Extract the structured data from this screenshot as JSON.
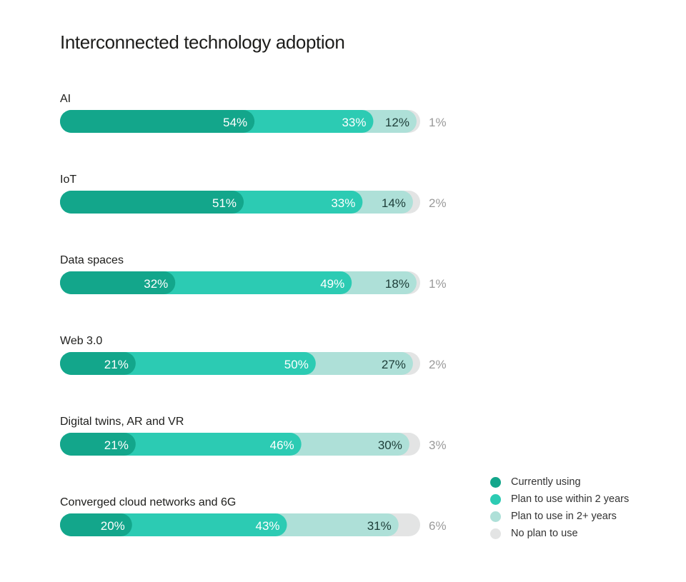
{
  "chart_data": {
    "type": "bar",
    "orientation": "horizontal",
    "stacked": true,
    "title": "Interconnected technology adoption",
    "unit": "%",
    "categories": [
      "AI",
      "IoT",
      "Data spaces",
      "Web 3.0",
      "Digital twins, AR and VR",
      "Converged cloud networks and 6G"
    ],
    "series": [
      {
        "name": "Currently using",
        "color": "#13a68b",
        "values": [
          54,
          51,
          32,
          21,
          21,
          20
        ]
      },
      {
        "name": "Plan to use within 2 years",
        "color": "#2ccbb3",
        "values": [
          33,
          33,
          49,
          50,
          46,
          43
        ]
      },
      {
        "name": "Plan to use in 2+ years",
        "color": "#aee0d8",
        "values": [
          12,
          14,
          18,
          27,
          30,
          31
        ]
      },
      {
        "name": "No plan to use",
        "color": "#e3e4e4",
        "values": [
          1,
          2,
          1,
          2,
          3,
          6
        ]
      }
    ],
    "xlim": [
      0,
      100
    ],
    "grid": false,
    "legend_position": "bottom-right"
  }
}
